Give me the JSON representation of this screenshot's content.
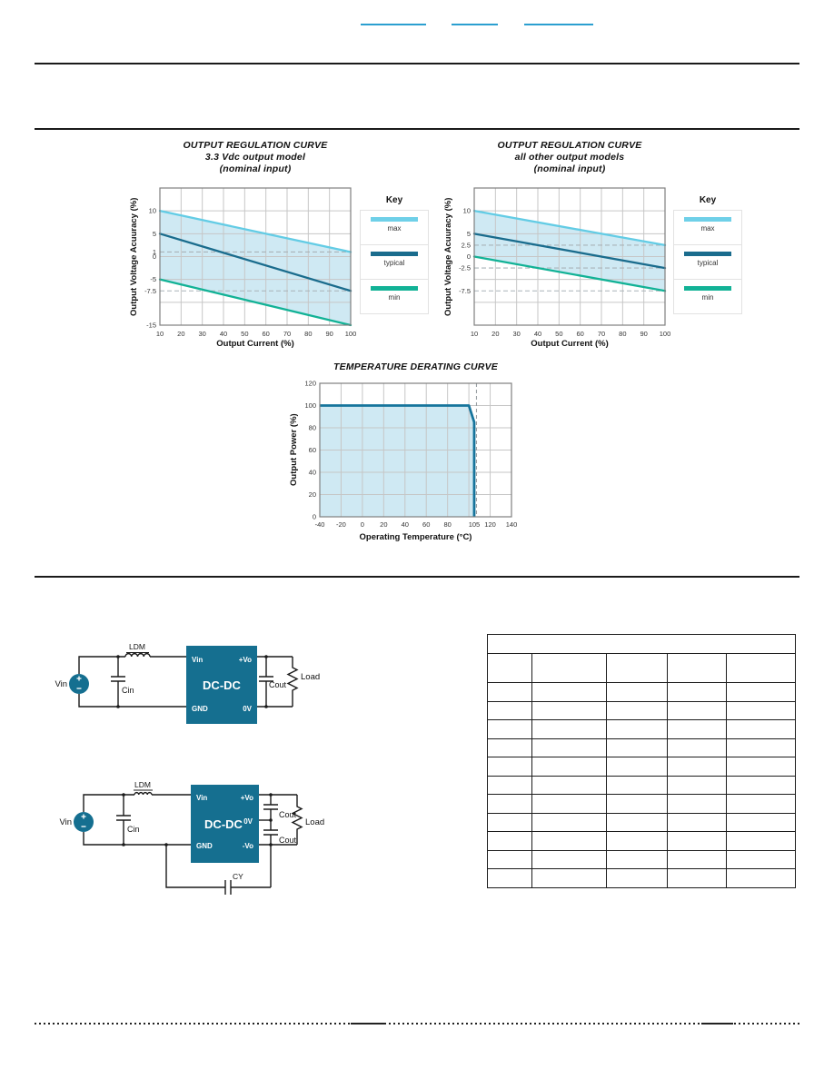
{
  "page": {
    "header": {
      "links": [
        {
          "label": ""
        },
        {
          "label": ""
        },
        {
          "label": ""
        }
      ]
    }
  },
  "legend": {
    "title": "Key",
    "entries": [
      {
        "label": "max",
        "color": "#6fd0e8"
      },
      {
        "label": "typical",
        "color": "#1a6c8d"
      },
      {
        "label": "min",
        "color": "#12b296"
      }
    ]
  },
  "chart_data": [
    {
      "type": "line",
      "title": "OUTPUT REGULATION CURVE",
      "subtitle": "3.3 Vdc output model",
      "subtitle2": "(nominal input)",
      "xlabel": "Output Current (%)",
      "ylabel": "Output Voltage Acuuracy (%)",
      "xlim": [
        10,
        100
      ],
      "ylim": [
        -15,
        15
      ],
      "xticks": [
        10,
        20,
        30,
        40,
        50,
        60,
        70,
        80,
        90,
        100
      ],
      "yticks": [
        10,
        5,
        1,
        0,
        -5,
        -7.5,
        -15
      ],
      "ygrid": [
        10,
        5,
        0,
        -5,
        -10
      ],
      "dashed_y": [
        1,
        -7.5
      ],
      "band_fill": "#cfe9f3",
      "legend_position": "right",
      "series": [
        {
          "name": "max",
          "color": "#63cce5",
          "x": [
            10,
            100
          ],
          "y": [
            10,
            1
          ]
        },
        {
          "name": "typical",
          "color": "#1a6c8d",
          "x": [
            10,
            100
          ],
          "y": [
            5,
            -7.5
          ]
        },
        {
          "name": "min",
          "color": "#12b296",
          "x": [
            10,
            100
          ],
          "y": [
            -5,
            -15
          ]
        }
      ]
    },
    {
      "type": "line",
      "title": "OUTPUT REGULATION CURVE",
      "subtitle": "all other output models",
      "subtitle2": "(nominal input)",
      "xlabel": "Output Current (%)",
      "ylabel": "Output Voltage Acuuracy (%)",
      "xlim": [
        10,
        100
      ],
      "ylim": [
        -15,
        15
      ],
      "xticks": [
        10,
        20,
        30,
        40,
        50,
        60,
        70,
        80,
        90,
        100
      ],
      "yticks": [
        10,
        5,
        2.5,
        0,
        -2.5,
        -7.5
      ],
      "ygrid": [
        10,
        5,
        0,
        -5,
        -10
      ],
      "dashed_y": [
        2.5,
        -2.5,
        -7.5
      ],
      "band_fill": "#cfe9f3",
      "legend_position": "right",
      "series": [
        {
          "name": "max",
          "color": "#63cce5",
          "x": [
            10,
            100
          ],
          "y": [
            10,
            2.5
          ]
        },
        {
          "name": "typical",
          "color": "#1a6c8d",
          "x": [
            10,
            100
          ],
          "y": [
            5,
            -2.5
          ]
        },
        {
          "name": "min",
          "color": "#12b296",
          "x": [
            10,
            100
          ],
          "y": [
            0,
            -7.5
          ]
        }
      ]
    },
    {
      "type": "area",
      "title": "TEMPERATURE DERATING CURVE",
      "xlabel": "Operating Temperature (°C)",
      "ylabel": "Output Power (%)",
      "xlim": [
        -40,
        140
      ],
      "ylim": [
        0,
        120
      ],
      "xticks": [
        -40,
        -20,
        0,
        20,
        40,
        60,
        80,
        105,
        120,
        140
      ],
      "yticks": [
        0,
        20,
        40,
        60,
        80,
        100,
        120
      ],
      "xgrid": [
        -20,
        0,
        20,
        40,
        60,
        80,
        100,
        120
      ],
      "ygrid": [
        20,
        40,
        60,
        80,
        100
      ],
      "dashed_x": [
        105
      ],
      "line_color": "#15749c",
      "fill": "#cfe9f3",
      "curve": {
        "x": [
          -40,
          100,
          105,
          105
        ],
        "y": [
          100,
          100,
          85,
          0
        ]
      }
    }
  ],
  "circuits": {
    "single_output": {
      "source_label": "Vin",
      "source_plus": "+",
      "source_minus": "−",
      "inductor_label": "LDM",
      "input_cap_label": "Cin",
      "block_label": "DC-DC",
      "pin_vin": "Vin",
      "pin_pvo": "+Vo",
      "pin_gnd": "GND",
      "pin_0v": "0V",
      "output_cap_label": "Cout",
      "load_label": "Load"
    },
    "dual_output": {
      "source_label": "Vin",
      "source_plus": "+",
      "source_minus": "−",
      "inductor_label": "LDM",
      "input_cap_label": "Cin",
      "block_label": "DC-DC",
      "pin_vin": "Vin",
      "pin_pvo": "+Vo",
      "pin_0v": "0V",
      "pin_gnd": "GND",
      "pin_nvo": "-Vo",
      "output_cap_top_label": "Cout",
      "output_cap_bottom_label": "Cout",
      "load_label": "Load",
      "y_cap_label": "CY"
    }
  },
  "table": {
    "title": "",
    "headers": [
      "",
      "",
      "",
      "",
      ""
    ],
    "rows": [
      [
        "",
        "",
        "",
        "",
        ""
      ],
      [
        "",
        "",
        "",
        "",
        ""
      ],
      [
        "",
        "",
        "",
        "",
        ""
      ],
      [
        "",
        "",
        "",
        "",
        ""
      ],
      [
        "",
        "",
        "",
        "",
        ""
      ],
      [
        "",
        "",
        "",
        "",
        ""
      ],
      [
        "",
        "",
        "",
        "",
        ""
      ],
      [
        "",
        "",
        "",
        "",
        ""
      ],
      [
        "",
        "",
        "",
        "",
        ""
      ],
      [
        "",
        "",
        "",
        "",
        ""
      ],
      [
        "",
        "",
        "",
        "",
        ""
      ]
    ]
  }
}
